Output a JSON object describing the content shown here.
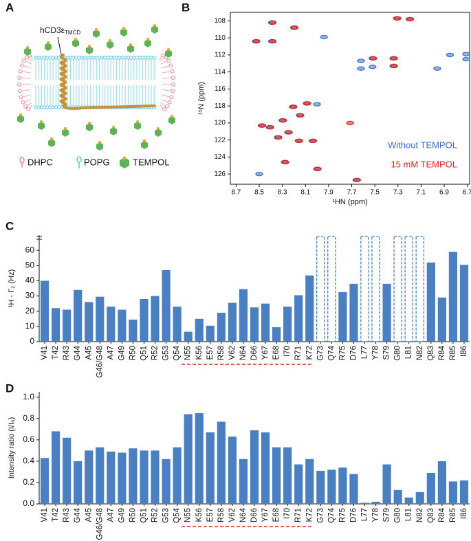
{
  "diagram": {
    "panel": "A",
    "protein_label": "hCD3ε",
    "protein_subscript": "TMCD",
    "legend": [
      "DHPC",
      "POPG",
      "TEMPOL"
    ]
  },
  "chart_data": [
    {
      "panel": "B",
      "type": "scatter",
      "xlabel": "¹HN (ppm)",
      "ylabel": "¹⁵N (ppm)",
      "xlim": [
        8.75,
        6.68
      ],
      "ylim": [
        127.2,
        107
      ],
      "xticks": [
        8.7,
        8.5,
        8.3,
        8.1,
        7.9,
        7.7,
        7.5,
        7.3,
        7.1,
        6.9,
        6.7
      ],
      "yticks": [
        108,
        110,
        112,
        114,
        116,
        118,
        120,
        122,
        124,
        126
      ],
      "legend": "lower right",
      "series": [
        {
          "name": "Without TEMPOL",
          "color": "#3a6fc4",
          "x": [
            8.39,
            8.53,
            8.39,
            8.2,
            7.94,
            7.31,
            7.2,
            7.52,
            7.52,
            7.34,
            7.34,
            6.85,
            6.96,
            6.71,
            6.71,
            7.62,
            7.62,
            8.09,
            8.0,
            8.21,
            8.15,
            8.3,
            8.48,
            8.41,
            8.34,
            8.25,
            8.16,
            8.04,
            8.28,
            8.0,
            8.5,
            7.66
          ],
          "values": [
            108.2,
            110.4,
            110.4,
            108.8,
            109.9,
            107.7,
            107.8,
            112.4,
            113.4,
            112.4,
            113.3,
            112.0,
            113.6,
            111.9,
            112.5,
            112.7,
            113.6,
            117.7,
            117.8,
            118.1,
            119.1,
            119.7,
            120.3,
            120.5,
            121.7,
            121.1,
            122.1,
            122.1,
            124.6,
            125.4,
            126.0,
            126.7
          ]
        },
        {
          "name": "15 mM TEMPOL",
          "color": "#e0201b",
          "x": [
            8.39,
            8.53,
            8.39,
            8.2,
            7.31,
            7.2,
            7.52,
            7.34,
            7.34,
            8.09,
            8.21,
            8.15,
            8.3,
            8.48,
            8.41,
            8.34,
            8.25,
            8.16,
            8.04,
            8.28,
            8.0,
            7.66,
            7.72
          ],
          "values": [
            108.2,
            110.4,
            110.4,
            108.8,
            107.7,
            107.8,
            112.4,
            112.4,
            113.3,
            117.7,
            118.1,
            119.1,
            119.7,
            120.3,
            120.5,
            121.7,
            121.1,
            122.1,
            122.1,
            124.6,
            125.4,
            126.7,
            120.0
          ]
        }
      ]
    },
    {
      "panel": "C",
      "type": "bar",
      "ylabel": "¹H - Γ₂ (Hz)",
      "color": "#4a7fc1",
      "categories": [
        "V41",
        "T42",
        "R43",
        "G44",
        "A45",
        "G46/G48",
        "A47",
        "G49",
        "R50",
        "Q51",
        "R52",
        "G53",
        "Q54",
        "N55",
        "K56",
        "E57",
        "R58",
        "V62",
        "N64",
        "D66",
        "Y67",
        "E68",
        "I70",
        "R71",
        "K72",
        "G73",
        "Q74",
        "R75",
        "D76",
        "L77",
        "Y78",
        "S79",
        "G80",
        "L81",
        "N82",
        "Q83",
        "R84",
        "R85",
        "I86"
      ],
      "values": [
        40,
        22,
        21,
        34,
        26,
        29.5,
        23,
        21,
        14.5,
        28,
        30,
        47,
        23,
        6.5,
        15,
        10.5,
        19,
        25.5,
        34.5,
        22.5,
        25,
        9.5,
        23,
        30.5,
        43.5,
        null,
        null,
        32.5,
        38,
        null,
        null,
        38,
        null,
        null,
        null,
        52,
        29,
        59,
        50.5
      ],
      "ylim": [
        0,
        70
      ],
      "yticks": [
        0,
        10,
        20,
        30,
        40,
        50,
        60
      ]
    },
    {
      "panel": "D",
      "type": "bar",
      "ylabel": "Intensity ratio (I/I₀)",
      "color": "#4a7fc1",
      "categories": [
        "V41",
        "T42",
        "R43",
        "G44",
        "A45",
        "G46/G48",
        "A47",
        "G49",
        "R50",
        "Q51",
        "R52",
        "G53",
        "Q54",
        "N55",
        "K56",
        "E57",
        "R58",
        "V62",
        "N64",
        "D66",
        "Y67",
        "E68",
        "I70",
        "R71",
        "K72",
        "G73",
        "Q74",
        "R75",
        "D76",
        "L77",
        "Y78",
        "S79",
        "G80",
        "L81",
        "N82",
        "Q83",
        "R84",
        "R85",
        "I86"
      ],
      "values": [
        0.43,
        0.68,
        0.62,
        0.4,
        0.5,
        0.53,
        0.49,
        0.48,
        0.52,
        0.5,
        0.5,
        0.42,
        0.53,
        0.84,
        0.85,
        0.67,
        0.77,
        0.63,
        0.42,
        0.69,
        0.67,
        0.53,
        0.53,
        0.37,
        0.42,
        0.31,
        0.32,
        0.34,
        0.28,
        0.01,
        0.02,
        0.37,
        0.13,
        0.06,
        0.11,
        0.29,
        0.4,
        0.21,
        0.22
      ],
      "ylim": [
        0,
        1.05
      ],
      "yticks": [
        {
          "value": 0,
          "label": "0.0"
        },
        0.2,
        0.4,
        0.6,
        0.8,
        {
          "value": 1,
          "label": "1.0"
        }
      ]
    }
  ]
}
